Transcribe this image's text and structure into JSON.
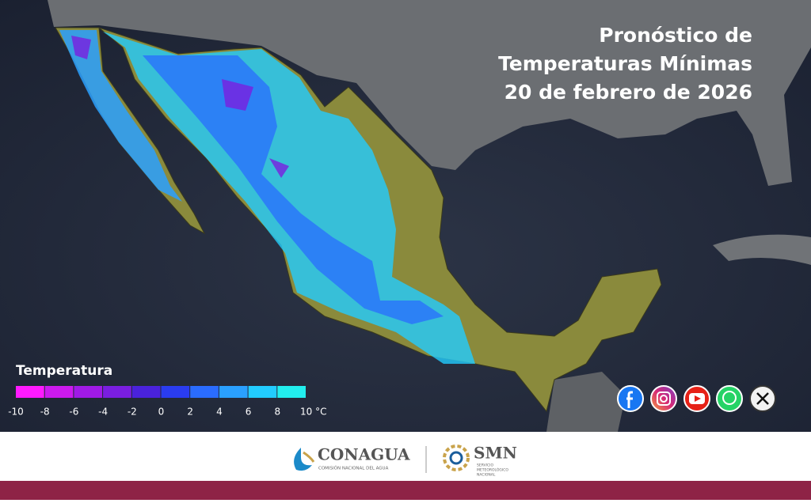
{
  "title": {
    "lines": [
      "Pronóstico de",
      "Temperaturas Mínimas",
      "20 de febrero de 2026"
    ]
  },
  "legend": {
    "title": "Temperatura",
    "labels": [
      "-10",
      "-8",
      "-6",
      "-4",
      "-2",
      "0",
      "2",
      "4",
      "6",
      "8",
      "10 °C"
    ],
    "colors": [
      "#ff1aff",
      "#cc1aee",
      "#a01ae6",
      "#7a1ee0",
      "#4a22dc",
      "#2a3cf0",
      "#2a6cff",
      "#2aa0ff",
      "#22ccff",
      "#22eeee"
    ]
  },
  "footer": {
    "conagua": {
      "name": "CONAGUA",
      "subtitle": "COMISIÓN NACIONAL DEL AGUA"
    },
    "smn": {
      "name": "SMN",
      "subtitle": [
        "SERVICIO",
        "METEOROLÓGICO",
        "NACIONAL"
      ]
    }
  }
}
